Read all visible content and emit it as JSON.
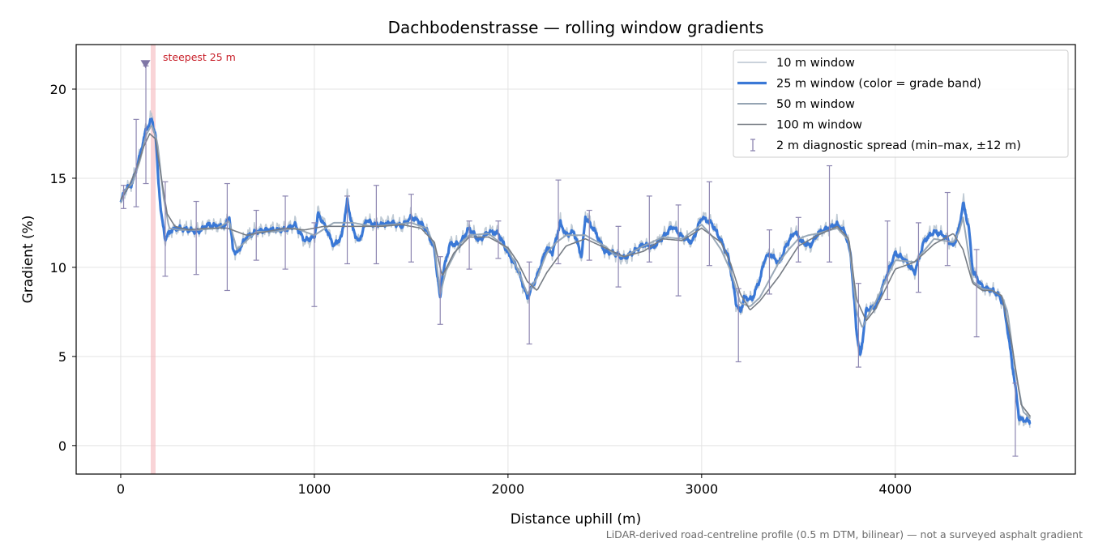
{
  "chart_data": {
    "type": "line",
    "title": "Dachbodenstrasse — rolling window gradients",
    "xlabel": "Distance uphill (m)",
    "ylabel": "Gradient (%)",
    "xlim": [
      -230,
      4930
    ],
    "ylim": [
      -1.6,
      22.5
    ],
    "xticks": [
      0,
      1000,
      2000,
      3000,
      4000
    ],
    "yticks": [
      0,
      5,
      10,
      15,
      20
    ],
    "grid": true,
    "legend_position": "top-right",
    "annotation": {
      "label": "steepest 25 m",
      "x_start": 155,
      "x_end": 180,
      "marker_x": 128,
      "marker_y": 21.4,
      "color": "#c8202a"
    },
    "colors": {
      "w10": "#b8c4cf",
      "w25": "#3a78d6",
      "w50": "#95a4b3",
      "w100": "#767c84",
      "errorbar": "#8d86b1",
      "highlight": "#f5b8bd"
    },
    "series": [
      {
        "name": "10 m window",
        "key": "w10",
        "noise": 0.45,
        "x": [
          0,
          20,
          60,
          100,
          130,
          160,
          180,
          195,
          210,
          230,
          260,
          300,
          350,
          400,
          450,
          500,
          540,
          560,
          580,
          600,
          650,
          700,
          750,
          800,
          850,
          900,
          950,
          1000,
          1020,
          1060,
          1100,
          1140,
          1170,
          1200,
          1230,
          1270,
          1300,
          1350,
          1400,
          1450,
          1500,
          1540,
          1580,
          1620,
          1650,
          1660,
          1700,
          1750,
          1800,
          1850,
          1900,
          1950,
          2000,
          2050,
          2100,
          2150,
          2200,
          2230,
          2270,
          2300,
          2340,
          2380,
          2400,
          2450,
          2500,
          2550,
          2600,
          2650,
          2700,
          2750,
          2800,
          2850,
          2900,
          2950,
          3000,
          3050,
          3100,
          3140,
          3180,
          3200,
          3220,
          3260,
          3300,
          3330,
          3360,
          3400,
          3440,
          3480,
          3520,
          3560,
          3600,
          3650,
          3700,
          3740,
          3770,
          3800,
          3820,
          3850,
          3900,
          3950,
          4000,
          4050,
          4100,
          4150,
          4200,
          4250,
          4300,
          4330,
          4350,
          4380,
          4400,
          4450,
          4500,
          4530,
          4560,
          4580,
          4620,
          4640,
          4680,
          4700
        ],
        "y": [
          13.5,
          14.2,
          14.8,
          16.4,
          17.8,
          18.5,
          17.5,
          15,
          13,
          11.5,
          12.1,
          12.2,
          12.2,
          12.1,
          12.4,
          12.3,
          12.4,
          13,
          11,
          10.8,
          11.8,
          12.1,
          12.1,
          12.2,
          12.1,
          12.5,
          11.4,
          11.6,
          13.2,
          12.3,
          11.2,
          11.7,
          13.9,
          12.2,
          11.4,
          12.8,
          12.4,
          12.5,
          12.6,
          12.3,
          12.9,
          12.6,
          12.1,
          11,
          8,
          9.5,
          11.4,
          11.3,
          12.3,
          11.5,
          12.1,
          11.9,
          10.8,
          9.9,
          8.2,
          9.5,
          11.2,
          10.8,
          12.6,
          11.8,
          12.1,
          10.5,
          13,
          12.1,
          10.9,
          10.8,
          10.4,
          10.9,
          11.3,
          11.1,
          11.8,
          12.4,
          11.7,
          11.4,
          12.9,
          12.6,
          11.5,
          10.5,
          7.8,
          7.4,
          8.3,
          8.2,
          9.4,
          10.6,
          10.8,
          10.2,
          11.4,
          12.1,
          11.4,
          11.1,
          11.9,
          12.2,
          12.5,
          12.1,
          10.8,
          6.2,
          4.8,
          7.6,
          7.8,
          9.4,
          10.8,
          10.5,
          9.7,
          11.6,
          12.1,
          11.8,
          11.2,
          12.3,
          13.8,
          12.4,
          9.8,
          8.9,
          8.7,
          8.5,
          7.9,
          6.5,
          3.2,
          1.4,
          1.4,
          1.3
        ]
      },
      {
        "name": "25 m window (color = grade band)",
        "key": "w25",
        "noise": 0.15,
        "x": [
          0,
          20,
          60,
          100,
          130,
          160,
          180,
          195,
          210,
          230,
          260,
          300,
          350,
          400,
          450,
          500,
          540,
          560,
          580,
          600,
          650,
          700,
          750,
          800,
          850,
          900,
          950,
          1000,
          1020,
          1060,
          1100,
          1140,
          1170,
          1200,
          1230,
          1270,
          1300,
          1350,
          1400,
          1450,
          1500,
          1540,
          1580,
          1620,
          1650,
          1660,
          1700,
          1750,
          1800,
          1850,
          1900,
          1950,
          2000,
          2050,
          2100,
          2150,
          2200,
          2230,
          2270,
          2300,
          2340,
          2380,
          2400,
          2450,
          2500,
          2550,
          2600,
          2650,
          2700,
          2750,
          2800,
          2850,
          2900,
          2950,
          3000,
          3050,
          3100,
          3140,
          3180,
          3200,
          3220,
          3260,
          3300,
          3330,
          3360,
          3400,
          3440,
          3480,
          3520,
          3560,
          3600,
          3650,
          3700,
          3740,
          3770,
          3800,
          3820,
          3850,
          3900,
          3950,
          4000,
          4050,
          4100,
          4150,
          4200,
          4250,
          4300,
          4330,
          4350,
          4380,
          4400,
          4450,
          4500,
          4530,
          4560,
          4580,
          4620,
          4640,
          4680,
          4700
        ],
        "y": [
          13.6,
          14.3,
          14.7,
          16.3,
          17.7,
          18.3,
          17.4,
          14.8,
          12.9,
          11.6,
          12.1,
          12.2,
          12.1,
          12,
          12.4,
          12.3,
          12.3,
          12.9,
          11,
          10.8,
          11.7,
          12,
          12.1,
          12.1,
          12.1,
          12.4,
          11.5,
          11.7,
          13,
          12.2,
          11.2,
          11.7,
          13.7,
          12.1,
          11.4,
          12.7,
          12.4,
          12.4,
          12.5,
          12.3,
          12.8,
          12.6,
          12.1,
          11,
          8.2,
          9.5,
          11.3,
          11.3,
          12.2,
          11.5,
          12,
          11.9,
          10.8,
          9.9,
          8.3,
          9.5,
          11.1,
          10.8,
          12.5,
          11.8,
          12,
          10.6,
          12.8,
          12,
          10.9,
          10.8,
          10.5,
          10.9,
          11.3,
          11.1,
          11.7,
          12.3,
          11.7,
          11.4,
          12.8,
          12.5,
          11.5,
          10.5,
          7.9,
          7.5,
          8.3,
          8.2,
          9.3,
          10.6,
          10.7,
          10.2,
          11.3,
          12,
          11.4,
          11.2,
          11.9,
          12.2,
          12.4,
          12,
          10.7,
          6.4,
          5,
          7.6,
          7.8,
          9.4,
          10.8,
          10.4,
          9.7,
          11.5,
          12,
          11.8,
          11.2,
          12.2,
          13.6,
          12.2,
          9.8,
          8.9,
          8.7,
          8.5,
          7.9,
          6.5,
          3.3,
          1.5,
          1.4,
          1.3
        ]
      },
      {
        "name": "50 m window",
        "key": "w50",
        "noise": 0,
        "x": [
          0,
          20,
          60,
          100,
          130,
          160,
          190,
          220,
          250,
          300,
          400,
          500,
          560,
          600,
          700,
          800,
          900,
          1000,
          1100,
          1200,
          1300,
          1400,
          1500,
          1580,
          1620,
          1650,
          1680,
          1750,
          1800,
          1900,
          2000,
          2050,
          2100,
          2150,
          2200,
          2250,
          2300,
          2400,
          2500,
          2550,
          2600,
          2700,
          2800,
          2900,
          3000,
          3050,
          3100,
          3150,
          3200,
          3250,
          3300,
          3350,
          3400,
          3450,
          3500,
          3550,
          3600,
          3700,
          3760,
          3800,
          3830,
          3860,
          3900,
          4000,
          4100,
          4200,
          4300,
          4330,
          4350,
          4400,
          4450,
          4500,
          4550,
          4580,
          4620,
          4660,
          4700
        ],
        "y": [
          13.6,
          14.3,
          14.7,
          16,
          17.4,
          18,
          17,
          14,
          12.2,
          12.1,
          12.1,
          12.2,
          12.6,
          11,
          12,
          12,
          12.2,
          11.8,
          12.5,
          12.5,
          12.3,
          12.4,
          12.5,
          12.2,
          11.2,
          8.5,
          9.8,
          11.3,
          11.8,
          11.9,
          11,
          9.9,
          8.5,
          9.4,
          10.8,
          11.4,
          11.8,
          11.8,
          11.2,
          10.7,
          10.6,
          11.2,
          11.7,
          11.6,
          12.4,
          11.8,
          11,
          9.8,
          8,
          7.8,
          8.3,
          9.3,
          10.3,
          11,
          11.6,
          11.8,
          11.9,
          12.2,
          11.5,
          7.5,
          6.6,
          7.3,
          8.1,
          10.4,
          10.3,
          11.6,
          11.4,
          12,
          12.8,
          9.2,
          8.8,
          8.7,
          8.4,
          7.5,
          4.2,
          1.9,
          1.5
        ]
      },
      {
        "name": "100 m window",
        "key": "w100",
        "noise": 0,
        "x": [
          0,
          40,
          80,
          120,
          150,
          180,
          210,
          240,
          280,
          350,
          450,
          550,
          650,
          750,
          850,
          950,
          1050,
          1150,
          1250,
          1350,
          1450,
          1550,
          1620,
          1660,
          1720,
          1800,
          1900,
          2000,
          2050,
          2100,
          2150,
          2200,
          2300,
          2400,
          2500,
          2600,
          2700,
          2800,
          2900,
          3000,
          3100,
          3150,
          3200,
          3250,
          3300,
          3400,
          3500,
          3600,
          3700,
          3760,
          3800,
          3850,
          3900,
          4000,
          4100,
          4200,
          4300,
          4350,
          4400,
          4450,
          4500,
          4550,
          4600,
          4650,
          4700
        ],
        "y": [
          13.8,
          14.5,
          15.5,
          16.8,
          17.5,
          17.2,
          15,
          13,
          12.3,
          12.1,
          12.2,
          12.2,
          11.8,
          12,
          12.2,
          12.1,
          12.3,
          12.3,
          12.3,
          12.3,
          12.4,
          12.2,
          11.4,
          9.5,
          10.8,
          11.7,
          11.7,
          11.1,
          10.3,
          9.2,
          8.7,
          9.7,
          11.2,
          11.6,
          11.1,
          10.6,
          10.9,
          11.6,
          11.5,
          12.2,
          11.4,
          10.2,
          8.5,
          7.6,
          8.1,
          9.5,
          11.2,
          11.8,
          12.3,
          11.6,
          8.2,
          7,
          7.7,
          9.9,
          10.3,
          11.3,
          11.9,
          11,
          9.1,
          8.7,
          8.7,
          8.4,
          5.8,
          2.3,
          1.6
        ]
      }
    ],
    "errorbars": {
      "name": "2 m diagnostic spread (min–max, ±12 m)",
      "x": [
        15,
        80,
        130,
        230,
        390,
        550,
        700,
        850,
        1000,
        1170,
        1320,
        1500,
        1650,
        1800,
        1950,
        2110,
        2260,
        2420,
        2570,
        2730,
        2880,
        3040,
        3190,
        3350,
        3500,
        3660,
        3810,
        3960,
        4120,
        4270,
        4420,
        4620
      ],
      "center": [
        13.8,
        15.8,
        16,
        12.2,
        12,
        11.8,
        11.8,
        12.2,
        10.3,
        12.4,
        12.5,
        12.4,
        8.4,
        11.5,
        11.6,
        8,
        12.1,
        12,
        10.4,
        12,
        11.7,
        11.8,
        8.1,
        10.5,
        11.7,
        12.3,
        6.7,
        10.2,
        10.4,
        12,
        8.7,
        1.5
      ],
      "low": [
        13.3,
        13.4,
        14.7,
        9.5,
        9.6,
        8.7,
        10.4,
        9.9,
        7.8,
        10.2,
        10.2,
        10.3,
        6.8,
        9.9,
        10.5,
        5.7,
        10.2,
        10.4,
        8.9,
        10.3,
        8.4,
        10.1,
        4.7,
        8.5,
        10.3,
        10.3,
        4.4,
        8.2,
        8.6,
        10.1,
        6.1,
        -0.6
      ],
      "high": [
        14.6,
        18.3,
        21.3,
        14.8,
        13.7,
        14.7,
        13.2,
        14,
        12.5,
        14,
        14.6,
        14.1,
        10.6,
        12.6,
        12.6,
        10.3,
        14.9,
        13.2,
        12.3,
        14,
        13.5,
        14.8,
        8.8,
        12.1,
        12.8,
        15.7,
        9.1,
        12.6,
        12.5,
        14.2,
        11,
        3.5
      ]
    }
  },
  "footnote": "LiDAR-derived road-centreline profile (0.5 m DTM, bilinear) — not a surveyed asphalt gradient"
}
